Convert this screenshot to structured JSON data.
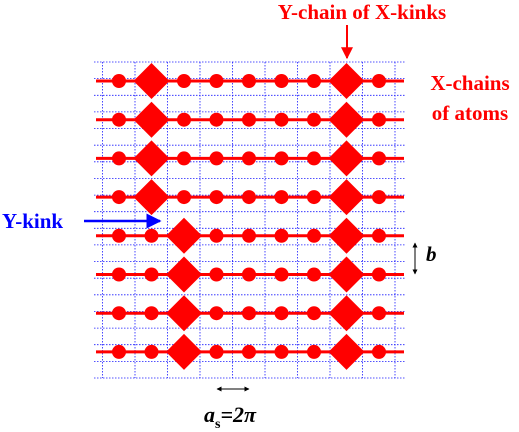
{
  "labels": {
    "y_chain": "Y-chain of X-kinks",
    "x_chains_line1": "X-chains",
    "x_chains_line2": "of atoms",
    "y_kink": "Y-kink",
    "b": "b",
    "as_a": "a",
    "as_sub": "s",
    "as_rest": "=2π"
  },
  "colors": {
    "chain": "#ff0000",
    "grid": "#1a1aff",
    "y_kink_label": "#0000ff",
    "labels_red": "#ff0000",
    "black": "#000000"
  },
  "diagram": {
    "grid_columns": 10,
    "grid_rows": 20,
    "chains": [
      {
        "atom_columns": [
          0,
          2,
          3,
          4,
          5,
          6,
          8
        ],
        "kink_columns": [
          1,
          7
        ]
      },
      {
        "atom_columns": [
          0,
          2,
          3,
          4,
          5,
          6,
          8
        ],
        "kink_columns": [
          1,
          7
        ]
      },
      {
        "atom_columns": [
          0,
          2,
          3,
          4,
          5,
          6,
          8
        ],
        "kink_columns": [
          1,
          7
        ]
      },
      {
        "atom_columns": [
          0,
          2,
          3,
          4,
          5,
          6,
          8
        ],
        "kink_columns": [
          1,
          7
        ]
      },
      {
        "atom_columns": [
          0,
          1,
          3,
          4,
          5,
          6,
          8
        ],
        "kink_columns": [
          2,
          7
        ]
      },
      {
        "atom_columns": [
          0,
          1,
          3,
          4,
          5,
          6,
          8
        ],
        "kink_columns": [
          2,
          7
        ]
      },
      {
        "atom_columns": [
          0,
          1,
          3,
          4,
          5,
          6,
          8
        ],
        "kink_columns": [
          2,
          7
        ]
      },
      {
        "atom_columns": [
          0,
          1,
          3,
          4,
          5,
          6,
          8
        ],
        "kink_columns": [
          2,
          7
        ]
      }
    ]
  }
}
